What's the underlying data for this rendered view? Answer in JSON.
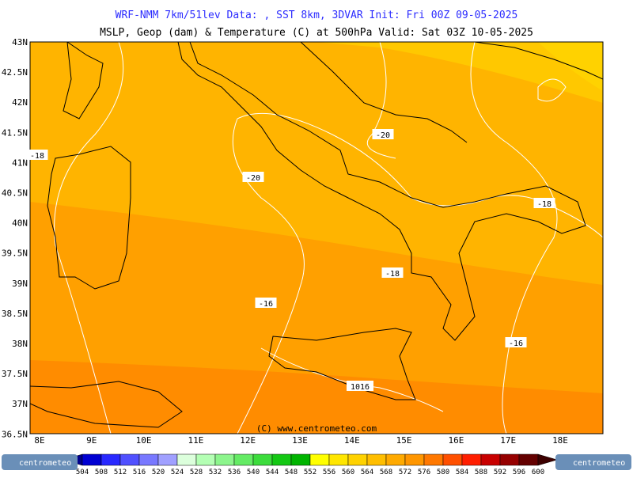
{
  "header": {
    "line1": "WRF-NMM 7km/51lev   Data: , SST 8km, 3DVAR   Init: Fri 00Z 09-05-2025",
    "line2": "MSLP, Geop (dam) & Temperature (C) at 500hPa   Valid: Sat 03Z 10-05-2025"
  },
  "map": {
    "lat_labels": [
      "43N",
      "42.5N",
      "42N",
      "41.5N",
      "41N",
      "40.5N",
      "40N",
      "39.5N",
      "39N",
      "38.5N",
      "38N",
      "37.5N",
      "37N",
      "36.5N"
    ],
    "lon_labels": [
      "8E",
      "9E",
      "10E",
      "11E",
      "12E",
      "13E",
      "14E",
      "15E",
      "16E",
      "17E",
      "18E"
    ],
    "contour_labels": [
      {
        "text": "-18",
        "pos": "west-sardinia"
      },
      {
        "text": "-20",
        "pos": "tyrrhenian"
      },
      {
        "text": "-20",
        "pos": "campania"
      },
      {
        "text": "-18",
        "pos": "puglia"
      },
      {
        "text": "-18",
        "pos": "calabria-west"
      },
      {
        "text": "-16",
        "pos": "tyrrhenian-south"
      },
      {
        "text": "-16",
        "pos": "ionian"
      },
      {
        "text": "1016",
        "pos": "sicily"
      }
    ],
    "copyright": "(C) www.centrometeo.com"
  },
  "colorbar": {
    "labels": [
      504,
      508,
      512,
      516,
      520,
      524,
      528,
      532,
      536,
      540,
      544,
      548,
      552,
      556,
      560,
      564,
      568,
      572,
      576,
      580,
      584,
      588,
      592,
      596,
      600
    ],
    "colors": [
      "#00008c",
      "#0000d2",
      "#2828ff",
      "#5050ff",
      "#7878ff",
      "#a0a0ff",
      "#dcffdc",
      "#b4ffb4",
      "#8cf58c",
      "#64eb64",
      "#3cdc3c",
      "#14c814",
      "#00b400",
      "#ffff00",
      "#ffe600",
      "#ffd200",
      "#ffbe00",
      "#ffaa00",
      "#ff9600",
      "#ff7800",
      "#ff5000",
      "#ff1e00",
      "#c80000",
      "#960000",
      "#640000",
      "#3c0000"
    ],
    "logo": "centrometeo"
  }
}
